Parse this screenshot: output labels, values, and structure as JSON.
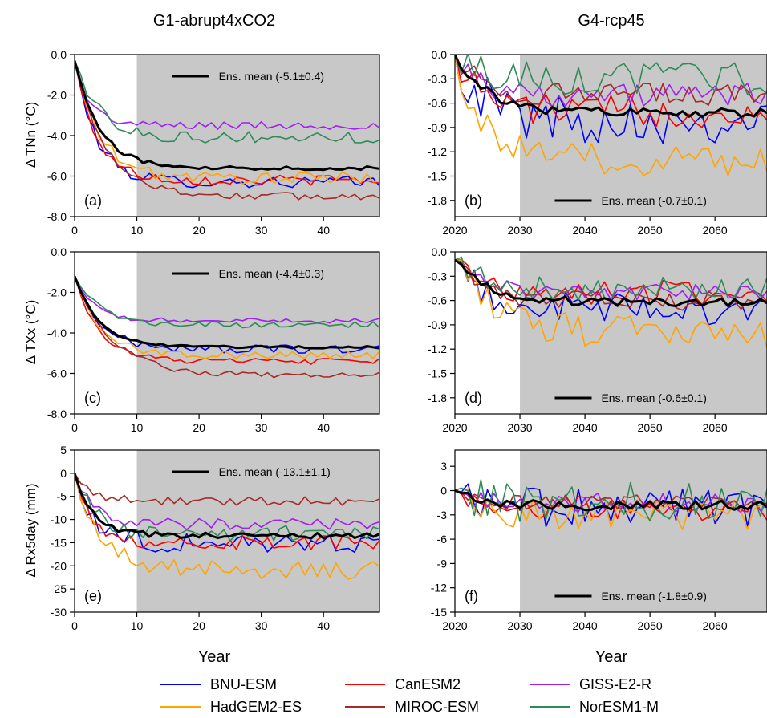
{
  "columns": {
    "left": "G1-abrupt4xCO2",
    "right": "G4-rcp45"
  },
  "axis_labels": {
    "x": "Year",
    "y_row1": "Δ TNn (°C)",
    "y_row2": "Δ TXx (°C)",
    "y_row3": "Δ Rx5day (mm)"
  },
  "models": [
    "BNU-ESM",
    "CanESM2",
    "GISS-E2-R",
    "HadGEM2-ES",
    "MIROC-ESM",
    "NorESM1-M"
  ],
  "colors": {
    "BNU-ESM": "#0000ff",
    "CanESM2": "#ff0000",
    "GISS-E2-R": "#a020f0",
    "HadGEM2-ES": "#ffa500",
    "MIROC-ESM": "#a52a2a",
    "NorESM1-M": "#2e8b57",
    "Ens. mean": "#000000",
    "shade": "#c8c8c8"
  },
  "chart_data": [
    {
      "panel": "(a)",
      "type": "line",
      "title": "",
      "ylabel": "Δ TNn (°C)",
      "xlabel": "",
      "xlim": [
        0,
        49
      ],
      "ylim": [
        -8,
        0
      ],
      "xticks": [
        0,
        10,
        20,
        30,
        40
      ],
      "yticks": [
        "0.0",
        "-2.0",
        "-4.0",
        "-6.0",
        "-8.0"
      ],
      "yticks_values": [
        0,
        -2,
        -4,
        -6,
        -8
      ],
      "shaded_from": 10,
      "ensemble_label": "Ens. mean (-5.1±0.4)",
      "ensemble_label_position": "top",
      "series": [
        {
          "name": "BNU-ESM",
          "start": -0.3,
          "end": -6.3,
          "tau": 3.5,
          "noise": 0.3
        },
        {
          "name": "CanESM2",
          "start": -0.3,
          "end": -6.2,
          "tau": 3.5,
          "noise": 0.25
        },
        {
          "name": "GISS-E2-R",
          "start": -0.3,
          "end": -3.5,
          "tau": 2.5,
          "noise": 0.2
        },
        {
          "name": "HadGEM2-ES",
          "start": -0.3,
          "end": -6.1,
          "tau": 4,
          "noise": 0.3
        },
        {
          "name": "MIROC-ESM",
          "start": -0.3,
          "end": -7.0,
          "tau": 5,
          "noise": 0.2
        },
        {
          "name": "NorESM1-M",
          "start": -0.3,
          "end": -4.1,
          "tau": 4,
          "noise": 0.3
        },
        {
          "name": "Ens. mean",
          "start": -0.3,
          "end": -5.6,
          "tau": 4,
          "noise": 0.1
        }
      ]
    },
    {
      "panel": "(b)",
      "type": "line",
      "title": "",
      "ylabel": "",
      "xlabel": "",
      "xlim": [
        2020,
        2068
      ],
      "ylim": [
        -2.0,
        0
      ],
      "xticks": [
        2020,
        2030,
        2040,
        2050,
        2060
      ],
      "yticks": [
        "0.0",
        "-0.3",
        "-0.6",
        "-0.9",
        "-1.2",
        "-1.5",
        "-1.8"
      ],
      "yticks_values": [
        0,
        -0.3,
        -0.6,
        -0.9,
        -1.2,
        -1.5,
        -1.8
      ],
      "shaded_from": 2030,
      "ensemble_label": "Ens. mean (-0.7±0.1)",
      "ensemble_label_position": "bottom",
      "series": [
        {
          "name": "BNU-ESM",
          "start": 0,
          "end": -0.8,
          "tau": 4,
          "noise": 0.3
        },
        {
          "name": "CanESM2",
          "start": 0,
          "end": -0.7,
          "tau": 4,
          "noise": 0.2
        },
        {
          "name": "GISS-E2-R",
          "start": 0,
          "end": -0.5,
          "tau": 4,
          "noise": 0.15
        },
        {
          "name": "HadGEM2-ES",
          "start": 0,
          "end": -1.3,
          "tau": 4,
          "noise": 0.2
        },
        {
          "name": "MIROC-ESM",
          "start": 0,
          "end": -0.5,
          "tau": 4,
          "noise": 0.15
        },
        {
          "name": "NorESM1-M",
          "start": 0,
          "end": -0.3,
          "tau": 4,
          "noise": 0.2
        },
        {
          "name": "Ens. mean",
          "start": 0,
          "end": -0.72,
          "tau": 5,
          "noise": 0.06
        }
      ]
    },
    {
      "panel": "(c)",
      "type": "line",
      "title": "",
      "ylabel": "Δ TXx (°C)",
      "xlabel": "",
      "xlim": [
        0,
        49
      ],
      "ylim": [
        -8,
        0
      ],
      "xticks": [
        0,
        10,
        20,
        30,
        40
      ],
      "yticks": [
        "0.0",
        "-2.0",
        "-4.0",
        "-6.0",
        "-8.0"
      ],
      "yticks_values": [
        0,
        -2,
        -4,
        -6,
        -8
      ],
      "shaded_from": 10,
      "ensemble_label": "Ens. mean (-4.4±0.3)",
      "ensemble_label_position": "top",
      "series": [
        {
          "name": "BNU-ESM",
          "start": -1.2,
          "end": -4.8,
          "tau": 4,
          "noise": 0.2
        },
        {
          "name": "CanESM2",
          "start": -1.2,
          "end": -5.4,
          "tau": 4,
          "noise": 0.15
        },
        {
          "name": "GISS-E2-R",
          "start": -1.2,
          "end": -3.4,
          "tau": 3,
          "noise": 0.12
        },
        {
          "name": "HadGEM2-ES",
          "start": -1.2,
          "end": -5.1,
          "tau": 4,
          "noise": 0.2
        },
        {
          "name": "MIROC-ESM",
          "start": -1.2,
          "end": -6.1,
          "tau": 6,
          "noise": 0.15
        },
        {
          "name": "NorESM1-M",
          "start": -1.2,
          "end": -3.6,
          "tau": 4,
          "noise": 0.15
        },
        {
          "name": "Ens. mean",
          "start": -1.2,
          "end": -4.7,
          "tau": 4,
          "noise": 0.06
        }
      ]
    },
    {
      "panel": "(d)",
      "type": "line",
      "title": "",
      "ylabel": "",
      "xlabel": "",
      "xlim": [
        2020,
        2068
      ],
      "ylim": [
        -2.0,
        0
      ],
      "xticks": [
        2020,
        2030,
        2040,
        2050,
        2060
      ],
      "yticks": [
        "0.0",
        "-0.3",
        "-0.6",
        "-0.9",
        "-1.2",
        "-1.5",
        "-1.8"
      ],
      "yticks_values": [
        0,
        -0.3,
        -0.6,
        -0.9,
        -1.2,
        -1.5,
        -1.8
      ],
      "shaded_from": 2030,
      "ensemble_label": "Ens. mean (-0.6±0.1)",
      "ensemble_label_position": "bottom",
      "series": [
        {
          "name": "BNU-ESM",
          "start": -0.1,
          "end": -0.7,
          "tau": 4,
          "noise": 0.2
        },
        {
          "name": "CanESM2",
          "start": -0.1,
          "end": -0.5,
          "tau": 4,
          "noise": 0.15
        },
        {
          "name": "GISS-E2-R",
          "start": -0.1,
          "end": -0.5,
          "tau": 4,
          "noise": 0.1
        },
        {
          "name": "HadGEM2-ES",
          "start": -0.1,
          "end": -1.0,
          "tau": 6,
          "noise": 0.2
        },
        {
          "name": "MIROC-ESM",
          "start": -0.1,
          "end": -0.6,
          "tau": 4,
          "noise": 0.12
        },
        {
          "name": "NorESM1-M",
          "start": -0.1,
          "end": -0.45,
          "tau": 4,
          "noise": 0.15
        },
        {
          "name": "Ens. mean",
          "start": -0.1,
          "end": -0.62,
          "tau": 5,
          "noise": 0.05
        }
      ]
    },
    {
      "panel": "(e)",
      "type": "line",
      "title": "",
      "ylabel": "Δ Rx5day (mm)",
      "xlabel": "Year",
      "xlim": [
        0,
        49
      ],
      "ylim": [
        -30,
        5
      ],
      "xticks": [
        0,
        10,
        20,
        30,
        40
      ],
      "yticks": [
        "5",
        "0",
        "-5",
        "-10",
        "-15",
        "-20",
        "-25",
        "-30"
      ],
      "yticks_values": [
        5,
        0,
        -5,
        -10,
        -15,
        -20,
        -25,
        -30
      ],
      "shaded_from": 10,
      "ensemble_label": "Ens. mean (-13.1±1.1)",
      "ensemble_label_position": "top",
      "series": [
        {
          "name": "BNU-ESM",
          "start": 0,
          "end": -15,
          "tau": 3,
          "noise": 2.5
        },
        {
          "name": "CanESM2",
          "start": 0,
          "end": -15,
          "tau": 3,
          "noise": 1.5
        },
        {
          "name": "GISS-E2-R",
          "start": 0,
          "end": -11,
          "tau": 3,
          "noise": 1.2
        },
        {
          "name": "HadGEM2-ES",
          "start": 0,
          "end": -21,
          "tau": 4,
          "noise": 2
        },
        {
          "name": "MIROC-ESM",
          "start": 0,
          "end": -6,
          "tau": 3,
          "noise": 1
        },
        {
          "name": "NorESM1-M",
          "start": 0,
          "end": -13,
          "tau": 3,
          "noise": 1.8
        },
        {
          "name": "Ens. mean",
          "start": 0,
          "end": -13.5,
          "tau": 3,
          "noise": 0.7
        }
      ]
    },
    {
      "panel": "(f)",
      "type": "line",
      "title": "",
      "ylabel": "",
      "xlabel": "Year",
      "xlim": [
        2020,
        2068
      ],
      "ylim": [
        -15,
        5
      ],
      "xticks": [
        2020,
        2030,
        2040,
        2050,
        2060
      ],
      "yticks": [
        "3",
        "0",
        "-3",
        "-6",
        "-9",
        "-12",
        "-15"
      ],
      "yticks_values": [
        3,
        0,
        -3,
        -6,
        -9,
        -12,
        -15
      ],
      "shaded_from": 2030,
      "ensemble_label": "Ens. mean (-1.8±0.9)",
      "ensemble_label_position": "bottom",
      "series": [
        {
          "name": "BNU-ESM",
          "start": 0,
          "end": -2,
          "tau": 3,
          "noise": 2.5
        },
        {
          "name": "CanESM2",
          "start": 0,
          "end": -2.2,
          "tau": 3,
          "noise": 1.5
        },
        {
          "name": "GISS-E2-R",
          "start": 0,
          "end": -1.5,
          "tau": 3,
          "noise": 1.2
        },
        {
          "name": "HadGEM2-ES",
          "start": 0,
          "end": -3,
          "tau": 3,
          "noise": 2
        },
        {
          "name": "MIROC-ESM",
          "start": 0,
          "end": -1.5,
          "tau": 3,
          "noise": 1
        },
        {
          "name": "NorESM1-M",
          "start": 0,
          "end": -1.5,
          "tau": 3,
          "noise": 2.5
        },
        {
          "name": "Ens. mean",
          "start": 0,
          "end": -1.8,
          "tau": 3,
          "noise": 0.6
        }
      ]
    }
  ]
}
